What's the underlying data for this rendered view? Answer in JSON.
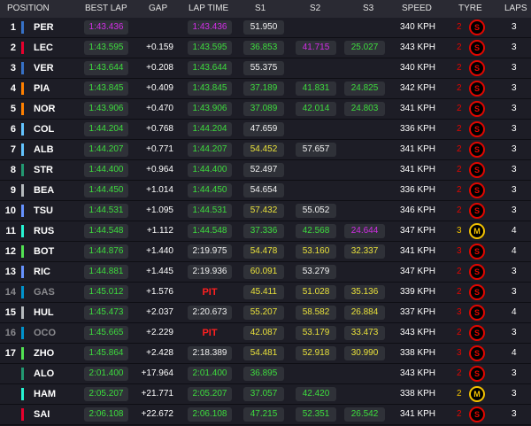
{
  "header": [
    "POSITION",
    "BEST LAP",
    "GAP",
    "LAP TIME",
    "S1",
    "S2",
    "S3",
    "SPEED",
    "TYRE",
    "LAPS"
  ],
  "rows": [
    {
      "position": "1",
      "driver": "PER",
      "team_color": "#3671c6",
      "best_lap": {
        "text": "1:43.436",
        "color": "purple"
      },
      "lap_time": {
        "text": "1:43.436",
        "color": "purple"
      },
      "s1": {
        "text": "51.950",
        "color": "white"
      },
      "speed": "340 KPH",
      "tyre_age": "2",
      "compound": "S",
      "laps": "3"
    },
    {
      "position": "2",
      "driver": "LEC",
      "team_color": "#e8002d",
      "best_lap": {
        "text": "1:43.595",
        "color": "green"
      },
      "gap": "+0.159",
      "lap_time": {
        "text": "1:43.595",
        "color": "green"
      },
      "s1": {
        "text": "36.853",
        "color": "green"
      },
      "s2": {
        "text": "41.715",
        "color": "purple"
      },
      "s3": {
        "text": "25.027",
        "color": "green"
      },
      "speed": "343 KPH",
      "tyre_age": "2",
      "compound": "S",
      "laps": "3"
    },
    {
      "position": "3",
      "driver": "VER",
      "team_color": "#3671c6",
      "best_lap": {
        "text": "1:43.644",
        "color": "green"
      },
      "gap": "+0.208",
      "lap_time": {
        "text": "1:43.644",
        "color": "green"
      },
      "s1": {
        "text": "55.375",
        "color": "white"
      },
      "speed": "340 KPH",
      "tyre_age": "2",
      "compound": "S",
      "laps": "3"
    },
    {
      "position": "4",
      "driver": "PIA",
      "team_color": "#ff8000",
      "best_lap": {
        "text": "1:43.845",
        "color": "green"
      },
      "gap": "+0.409",
      "lap_time": {
        "text": "1:43.845",
        "color": "green"
      },
      "s1": {
        "text": "37.189",
        "color": "green"
      },
      "s2": {
        "text": "41.831",
        "color": "green"
      },
      "s3": {
        "text": "24.825",
        "color": "green"
      },
      "speed": "342 KPH",
      "tyre_age": "2",
      "compound": "S",
      "laps": "3"
    },
    {
      "position": "5",
      "driver": "NOR",
      "team_color": "#ff8000",
      "best_lap": {
        "text": "1:43.906",
        "color": "green"
      },
      "gap": "+0.470",
      "lap_time": {
        "text": "1:43.906",
        "color": "green"
      },
      "s1": {
        "text": "37.089",
        "color": "green"
      },
      "s2": {
        "text": "42.014",
        "color": "green"
      },
      "s3": {
        "text": "24.803",
        "color": "green"
      },
      "speed": "341 KPH",
      "tyre_age": "2",
      "compound": "S",
      "laps": "3"
    },
    {
      "position": "6",
      "driver": "COL",
      "team_color": "#64c4ff",
      "best_lap": {
        "text": "1:44.204",
        "color": "green"
      },
      "gap": "+0.768",
      "lap_time": {
        "text": "1:44.204",
        "color": "green"
      },
      "s1": {
        "text": "47.659",
        "color": "white"
      },
      "speed": "336 KPH",
      "tyre_age": "2",
      "compound": "S",
      "laps": "3"
    },
    {
      "position": "7",
      "driver": "ALB",
      "team_color": "#64c4ff",
      "best_lap": {
        "text": "1:44.207",
        "color": "green"
      },
      "gap": "+0.771",
      "lap_time": {
        "text": "1:44.207",
        "color": "green"
      },
      "s1": {
        "text": "54.452",
        "color": "yellow"
      },
      "s2": {
        "text": "57.657",
        "color": "white"
      },
      "speed": "341 KPH",
      "tyre_age": "2",
      "compound": "S",
      "laps": "3"
    },
    {
      "position": "8",
      "driver": "STR",
      "team_color": "#229971",
      "best_lap": {
        "text": "1:44.400",
        "color": "green"
      },
      "gap": "+0.964",
      "lap_time": {
        "text": "1:44.400",
        "color": "green"
      },
      "s1": {
        "text": "52.497",
        "color": "white"
      },
      "speed": "341 KPH",
      "tyre_age": "2",
      "compound": "S",
      "laps": "3"
    },
    {
      "position": "9",
      "driver": "BEA",
      "team_color": "#b6babd",
      "best_lap": {
        "text": "1:44.450",
        "color": "green"
      },
      "gap": "+1.014",
      "lap_time": {
        "text": "1:44.450",
        "color": "green"
      },
      "s1": {
        "text": "54.654",
        "color": "white"
      },
      "speed": "336 KPH",
      "tyre_age": "2",
      "compound": "S",
      "laps": "3"
    },
    {
      "position": "10",
      "driver": "TSU",
      "team_color": "#6692ff",
      "best_lap": {
        "text": "1:44.531",
        "color": "green"
      },
      "gap": "+1.095",
      "lap_time": {
        "text": "1:44.531",
        "color": "green"
      },
      "s1": {
        "text": "57.432",
        "color": "yellow"
      },
      "s2": {
        "text": "55.052",
        "color": "white"
      },
      "speed": "346 KPH",
      "tyre_age": "2",
      "compound": "S",
      "laps": "3"
    },
    {
      "position": "11",
      "driver": "RUS",
      "team_color": "#27f4d2",
      "best_lap": {
        "text": "1:44.548",
        "color": "green"
      },
      "gap": "+1.112",
      "lap_time": {
        "text": "1:44.548",
        "color": "green"
      },
      "s1": {
        "text": "37.336",
        "color": "green"
      },
      "s2": {
        "text": "42.568",
        "color": "green"
      },
      "s3": {
        "text": "24.644",
        "color": "purple"
      },
      "speed": "347 KPH",
      "tyre_age": "3",
      "compound": "M",
      "laps": "4"
    },
    {
      "position": "12",
      "driver": "BOT",
      "team_color": "#52e252",
      "best_lap": {
        "text": "1:44.876",
        "color": "green"
      },
      "gap": "+1.440",
      "lap_time": {
        "text": "2:19.975",
        "color": "white"
      },
      "s1": {
        "text": "54.478",
        "color": "yellow"
      },
      "s2": {
        "text": "53.160",
        "color": "yellow"
      },
      "s3": {
        "text": "32.337",
        "color": "yellow"
      },
      "speed": "341 KPH",
      "tyre_age": "3",
      "compound": "S",
      "laps": "4"
    },
    {
      "position": "13",
      "driver": "RIC",
      "team_color": "#6692ff",
      "best_lap": {
        "text": "1:44.881",
        "color": "green"
      },
      "gap": "+1.445",
      "lap_time": {
        "text": "2:19.936",
        "color": "white"
      },
      "s1": {
        "text": "60.091",
        "color": "yellow"
      },
      "s2": {
        "text": "53.279",
        "color": "white"
      },
      "speed": "347 KPH",
      "tyre_age": "2",
      "compound": "S",
      "laps": "3"
    },
    {
      "position": "14",
      "driver": "GAS",
      "team_color": "#0093cc",
      "name_color": "#8a8a8e",
      "best_lap": {
        "text": "1:45.012",
        "color": "green"
      },
      "gap": "+1.576",
      "lap_time": {
        "text": "PIT",
        "color": "red"
      },
      "s1": {
        "text": "45.411",
        "color": "yellow"
      },
      "s2": {
        "text": "51.028",
        "color": "yellow"
      },
      "s3": {
        "text": "35.136",
        "color": "yellow"
      },
      "speed": "339 KPH",
      "tyre_age": "2",
      "compound": "S",
      "laps": "3"
    },
    {
      "position": "15",
      "driver": "HUL",
      "team_color": "#b6babd",
      "best_lap": {
        "text": "1:45.473",
        "color": "green"
      },
      "gap": "+2.037",
      "lap_time": {
        "text": "2:20.673",
        "color": "white"
      },
      "s1": {
        "text": "55.207",
        "color": "yellow"
      },
      "s2": {
        "text": "58.582",
        "color": "yellow"
      },
      "s3": {
        "text": "26.884",
        "color": "yellow"
      },
      "speed": "337 KPH",
      "tyre_age": "3",
      "compound": "S",
      "laps": "4"
    },
    {
      "position": "16",
      "driver": "OCO",
      "team_color": "#0093cc",
      "name_color": "#8a8a8e",
      "best_lap": {
        "text": "1:45.665",
        "color": "green"
      },
      "gap": "+2.229",
      "lap_time": {
        "text": "PIT",
        "color": "red"
      },
      "s1": {
        "text": "42.087",
        "color": "yellow"
      },
      "s2": {
        "text": "53.179",
        "color": "yellow"
      },
      "s3": {
        "text": "33.473",
        "color": "yellow"
      },
      "speed": "343 KPH",
      "tyre_age": "2",
      "compound": "S",
      "laps": "3"
    },
    {
      "position": "17",
      "driver": "ZHO",
      "team_color": "#52e252",
      "best_lap": {
        "text": "1:45.864",
        "color": "green"
      },
      "gap": "+2.428",
      "lap_time": {
        "text": "2:18.389",
        "color": "white"
      },
      "s1": {
        "text": "54.481",
        "color": "yellow"
      },
      "s2": {
        "text": "52.918",
        "color": "yellow"
      },
      "s3": {
        "text": "30.990",
        "color": "yellow"
      },
      "speed": "338 KPH",
      "tyre_age": "3",
      "compound": "S",
      "laps": "4"
    },
    {
      "driver": "ALO",
      "team_color": "#229971",
      "best_lap": {
        "text": "2:01.400",
        "color": "green"
      },
      "gap": "+17.964",
      "lap_time": {
        "text": "2:01.400",
        "color": "green"
      },
      "s1": {
        "text": "36.895",
        "color": "green"
      },
      "speed": "343 KPH",
      "tyre_age": "2",
      "compound": "S",
      "laps": "3"
    },
    {
      "driver": "HAM",
      "team_color": "#27f4d2",
      "best_lap": {
        "text": "2:05.207",
        "color": "green"
      },
      "gap": "+21.771",
      "lap_time": {
        "text": "2:05.207",
        "color": "green"
      },
      "s1": {
        "text": "37.057",
        "color": "green"
      },
      "s2": {
        "text": "42.420",
        "color": "green"
      },
      "speed": "338 KPH",
      "tyre_age": "2",
      "compound": "M",
      "laps": "3"
    },
    {
      "driver": "SAI",
      "team_color": "#e8002d",
      "best_lap": {
        "text": "2:06.108",
        "color": "green"
      },
      "gap": "+22.672",
      "lap_time": {
        "text": "2:06.108",
        "color": "green"
      },
      "s1": {
        "text": "47.215",
        "color": "green"
      },
      "s2": {
        "text": "52.351",
        "color": "green"
      },
      "s3": {
        "text": "26.542",
        "color": "green"
      },
      "speed": "341 KPH",
      "tyre_age": "2",
      "compound": "S",
      "laps": "3"
    }
  ]
}
